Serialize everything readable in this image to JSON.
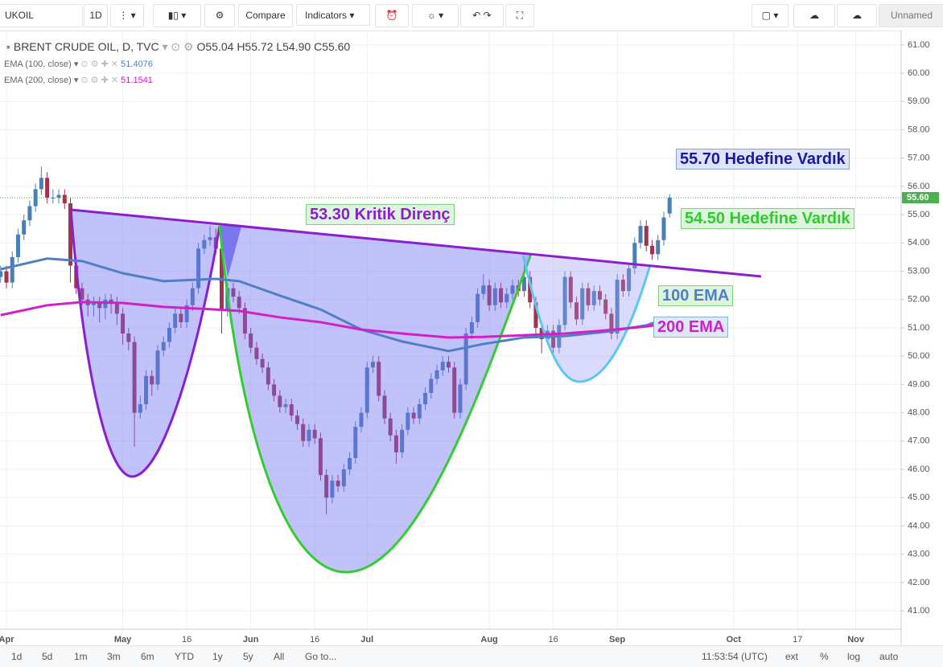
{
  "toolbar": {
    "symbol": "UKOIL",
    "interval": "1D",
    "compare": "Compare",
    "indicators": "Indicators",
    "layout": "Unnamed"
  },
  "legend": {
    "title": "BRENT CRUDE OIL, D, TVC",
    "open": "O55.04",
    "high": "H55.72",
    "low": "L54.90",
    "close": "C55.60"
  },
  "bottom_bar": {
    "ranges": [
      "1d",
      "5d",
      "1m",
      "3m",
      "6m",
      "YTD",
      "1y",
      "5y",
      "All"
    ],
    "goto": "Go to...",
    "clock": "11:53:54 (UTC)",
    "options": [
      "ext",
      "%",
      "log",
      "auto"
    ]
  },
  "chart_data": {
    "type": "candlestick",
    "categories": [
      null,
      "Apr",
      null,
      null,
      null,
      null,
      null,
      null,
      null,
      null,
      null,
      null,
      null,
      null,
      null,
      null,
      null,
      null,
      null,
      null,
      null,
      "May",
      null,
      null,
      null,
      null,
      null,
      null,
      null,
      null,
      null,
      null,
      "16",
      null,
      null,
      null,
      null,
      null,
      null,
      null,
      null,
      null,
      null,
      "Jun",
      null,
      null,
      null,
      null,
      null,
      null,
      null,
      null,
      null,
      null,
      "16",
      null,
      null,
      null,
      null,
      null,
      null,
      null,
      null,
      "Jul",
      null,
      null,
      null,
      null,
      null,
      null,
      null,
      null,
      null,
      null,
      null,
      null,
      null,
      null,
      null,
      null,
      null,
      null,
      null,
      null,
      "Aug",
      null,
      null,
      null,
      null,
      null,
      null,
      null,
      null,
      null,
      null,
      "16",
      null,
      null,
      null,
      null,
      null,
      null,
      null,
      null,
      null,
      null,
      "Sep",
      null,
      null,
      null,
      null,
      null,
      null,
      null,
      null,
      null,
      null,
      null,
      null,
      null,
      null,
      null,
      null,
      null,
      null,
      null,
      "Oct",
      null,
      null,
      null,
      null,
      null,
      null,
      null,
      null,
      null,
      null,
      "17",
      null,
      null,
      null,
      null,
      null,
      null,
      null,
      null,
      null,
      "Nov"
    ],
    "ohlc": [
      [
        52.8,
        53.2,
        52.6,
        53.0
      ],
      [
        53.0,
        53.2,
        52.4,
        52.6
      ],
      [
        52.6,
        53.7,
        52.4,
        53.5
      ],
      [
        53.5,
        54.5,
        53.3,
        54.3
      ],
      [
        54.3,
        55.0,
        54.1,
        54.8
      ],
      [
        54.8,
        55.5,
        54.6,
        55.3
      ],
      [
        55.3,
        56.1,
        55.1,
        55.9
      ],
      [
        55.9,
        56.7,
        55.7,
        56.3
      ],
      [
        56.3,
        56.5,
        55.4,
        55.6
      ],
      [
        55.6,
        55.9,
        55.4,
        55.6
      ],
      [
        55.6,
        55.9,
        55.4,
        55.7
      ],
      [
        55.7,
        55.9,
        55.2,
        55.4
      ],
      [
        55.4,
        55.6,
        52.6,
        53.2
      ],
      [
        53.2,
        53.4,
        52.2,
        52.4
      ],
      [
        52.4,
        52.6,
        51.8,
        52.0
      ],
      [
        52.0,
        52.2,
        51.4,
        51.8
      ],
      [
        51.8,
        52.1,
        51.4,
        51.9
      ],
      [
        51.9,
        52.1,
        51.2,
        51.7
      ],
      [
        51.7,
        52.2,
        51.3,
        52.0
      ],
      [
        52.0,
        52.2,
        51.5,
        51.9
      ],
      [
        51.9,
        52.1,
        51.1,
        51.5
      ],
      [
        51.5,
        51.7,
        50.4,
        50.8
      ],
      [
        50.8,
        51.0,
        50.2,
        50.5
      ],
      [
        50.5,
        50.7,
        46.8,
        48.0
      ],
      [
        48.0,
        48.6,
        47.8,
        48.3
      ],
      [
        48.3,
        49.5,
        48.1,
        49.3
      ],
      [
        49.3,
        49.5,
        48.6,
        49.0
      ],
      [
        49.0,
        50.4,
        48.8,
        50.2
      ],
      [
        50.2,
        50.7,
        50.0,
        50.5
      ],
      [
        50.5,
        51.2,
        50.3,
        51.0
      ],
      [
        51.0,
        51.7,
        50.8,
        51.5
      ],
      [
        51.5,
        51.7,
        51.0,
        51.2
      ],
      [
        51.2,
        52.0,
        51.0,
        51.8
      ],
      [
        51.8,
        52.6,
        51.6,
        52.4
      ],
      [
        52.4,
        54.0,
        52.2,
        53.8
      ],
      [
        53.8,
        54.3,
        53.6,
        54.1
      ],
      [
        54.1,
        54.6,
        53.9,
        54.2
      ],
      [
        54.2,
        54.5,
        53.6,
        53.8
      ],
      [
        53.8,
        54.0,
        50.8,
        51.6
      ],
      [
        51.6,
        52.6,
        51.4,
        52.4
      ],
      [
        52.4,
        52.6,
        51.9,
        52.1
      ],
      [
        52.1,
        52.3,
        51.5,
        51.7
      ],
      [
        51.7,
        51.9,
        50.6,
        50.8
      ],
      [
        50.8,
        51.0,
        50.1,
        50.3
      ],
      [
        50.3,
        50.5,
        49.7,
        49.9
      ],
      [
        49.9,
        50.1,
        49.4,
        49.6
      ],
      [
        49.6,
        49.8,
        48.8,
        49.0
      ],
      [
        49.0,
        49.2,
        48.4,
        48.6
      ],
      [
        48.6,
        48.8,
        48.0,
        48.2
      ],
      [
        48.2,
        48.5,
        48.0,
        48.3
      ],
      [
        48.3,
        48.5,
        47.7,
        47.9
      ],
      [
        47.9,
        48.1,
        47.4,
        47.6
      ],
      [
        47.6,
        47.8,
        46.8,
        47.0
      ],
      [
        47.0,
        47.6,
        46.8,
        47.4
      ],
      [
        47.4,
        47.6,
        46.9,
        47.1
      ],
      [
        47.1,
        47.3,
        45.6,
        45.8
      ],
      [
        45.8,
        46.0,
        44.4,
        45.0
      ],
      [
        45.0,
        45.8,
        44.8,
        45.6
      ],
      [
        45.6,
        45.8,
        45.2,
        45.4
      ],
      [
        45.4,
        46.2,
        45.2,
        46.0
      ],
      [
        46.0,
        46.6,
        45.8,
        46.4
      ],
      [
        46.4,
        47.7,
        46.2,
        47.5
      ],
      [
        47.5,
        48.2,
        47.3,
        48.0
      ],
      [
        48.0,
        49.8,
        47.8,
        49.6
      ],
      [
        49.6,
        50.0,
        49.4,
        49.8
      ],
      [
        49.8,
        50.0,
        48.4,
        48.6
      ],
      [
        48.6,
        48.8,
        47.6,
        47.8
      ],
      [
        47.8,
        48.0,
        47.0,
        47.2
      ],
      [
        47.2,
        47.4,
        46.2,
        46.6
      ],
      [
        46.6,
        47.6,
        46.4,
        47.4
      ],
      [
        47.4,
        48.2,
        47.2,
        48.0
      ],
      [
        48.0,
        48.2,
        47.6,
        47.8
      ],
      [
        47.8,
        48.5,
        47.6,
        48.3
      ],
      [
        48.3,
        48.9,
        48.1,
        48.7
      ],
      [
        48.7,
        49.4,
        48.5,
        49.2
      ],
      [
        49.2,
        49.7,
        49.0,
        49.5
      ],
      [
        49.5,
        50.0,
        49.3,
        49.8
      ],
      [
        49.8,
        50.0,
        49.4,
        49.6
      ],
      [
        49.6,
        49.8,
        47.8,
        48.0
      ],
      [
        48.0,
        49.2,
        47.8,
        49.0
      ],
      [
        49.0,
        51.0,
        48.8,
        50.8
      ],
      [
        50.8,
        51.4,
        50.6,
        51.2
      ],
      [
        51.2,
        52.4,
        51.0,
        52.2
      ],
      [
        52.2,
        52.9,
        52.0,
        52.5
      ],
      [
        52.5,
        52.7,
        51.6,
        51.8
      ],
      [
        51.8,
        52.6,
        51.6,
        52.4
      ],
      [
        52.4,
        52.6,
        51.7,
        51.9
      ],
      [
        51.9,
        52.4,
        51.7,
        52.2
      ],
      [
        52.2,
        52.7,
        52.0,
        52.5
      ],
      [
        52.5,
        52.7,
        52.1,
        52.3
      ],
      [
        52.3,
        53.4,
        52.1,
        52.8
      ],
      [
        52.8,
        53.0,
        51.7,
        51.9
      ],
      [
        51.9,
        52.1,
        50.8,
        51.0
      ],
      [
        51.0,
        51.2,
        50.1,
        50.6
      ],
      [
        50.6,
        51.1,
        50.4,
        50.9
      ],
      [
        50.9,
        51.1,
        50.1,
        50.3
      ],
      [
        50.3,
        51.3,
        50.1,
        51.1
      ],
      [
        51.1,
        53.0,
        50.9,
        52.8
      ],
      [
        52.8,
        53.0,
        51.7,
        51.9
      ],
      [
        51.9,
        52.1,
        51.1,
        51.3
      ],
      [
        51.3,
        52.6,
        51.1,
        52.4
      ],
      [
        52.4,
        52.6,
        51.6,
        51.8
      ],
      [
        51.8,
        52.5,
        51.6,
        52.3
      ],
      [
        52.3,
        52.5,
        51.8,
        52.0
      ],
      [
        52.0,
        52.2,
        51.3,
        51.5
      ],
      [
        51.5,
        51.7,
        50.6,
        50.8
      ],
      [
        50.8,
        52.9,
        50.6,
        52.7
      ],
      [
        52.7,
        52.9,
        52.1,
        52.3
      ],
      [
        52.3,
        53.3,
        52.1,
        53.1
      ],
      [
        53.1,
        54.2,
        52.9,
        54.0
      ],
      [
        54.0,
        54.8,
        53.8,
        54.6
      ],
      [
        54.6,
        54.8,
        53.7,
        53.9
      ],
      [
        53.9,
        54.1,
        53.4,
        53.6
      ],
      [
        53.6,
        54.3,
        53.4,
        54.1
      ],
      [
        54.1,
        55.1,
        53.9,
        54.9
      ],
      [
        55.04,
        55.72,
        54.9,
        55.6
      ],
      null,
      null,
      null,
      null,
      null,
      null,
      null,
      null,
      null,
      null,
      null,
      null,
      null,
      null,
      null,
      null,
      null,
      null,
      null,
      null,
      null,
      null,
      null,
      null,
      null,
      null,
      null,
      null,
      null,
      null,
      null,
      null
    ],
    "up_color": "#4a7fb5",
    "down_color": "#a3324e",
    "indicators": [
      {
        "name": "EMA (100, close)",
        "value_label": "51.4076",
        "color": "#4f7fc4",
        "x": [
          0,
          8,
          14,
          21,
          28,
          37,
          41,
          48,
          55,
          62,
          69,
          77,
          83,
          90,
          97,
          104,
          111,
          115
        ],
        "values": [
          53.07,
          53.45,
          53.36,
          52.93,
          52.65,
          52.73,
          52.65,
          52.14,
          51.65,
          50.94,
          50.52,
          50.18,
          50.43,
          50.66,
          50.71,
          50.86,
          51.09,
          51.37
        ]
      },
      {
        "name": "EMA (200, close)",
        "value_label": "51.1541",
        "color": "#d020c8",
        "x": [
          0,
          8,
          14,
          21,
          28,
          37,
          41,
          48,
          55,
          62,
          69,
          77,
          83,
          90,
          97,
          104,
          111,
          115
        ],
        "values": [
          51.45,
          51.8,
          51.91,
          51.88,
          51.74,
          51.65,
          51.6,
          51.37,
          51.2,
          50.94,
          50.8,
          50.66,
          50.68,
          50.74,
          50.8,
          50.91,
          51.05,
          51.17
        ]
      }
    ],
    "price_label": "55.60",
    "price_color": "#4caf50",
    "ylim": [
      40.35,
      61.45
    ],
    "yticks": [
      {
        "value": 41,
        "label": "41.00"
      },
      {
        "value": 42,
        "label": "42.00"
      },
      {
        "value": 43,
        "label": "43.00"
      },
      {
        "value": 44,
        "label": "44.00"
      },
      {
        "value": 45,
        "label": "45.00"
      },
      {
        "value": 46,
        "label": "46.00"
      },
      {
        "value": 47,
        "label": "47.00"
      },
      {
        "value": 48,
        "label": "48.00"
      },
      {
        "value": 49,
        "label": "49.00"
      },
      {
        "value": 50,
        "label": "50.00"
      },
      {
        "value": 51,
        "label": "51.00"
      },
      {
        "value": 52,
        "label": "52.00"
      },
      {
        "value": 53,
        "label": "53.00"
      },
      {
        "value": 54,
        "label": "54.00"
      },
      {
        "value": 55,
        "label": "55.00"
      },
      {
        "value": 56,
        "label": "56.00"
      },
      {
        "value": 57,
        "label": "57.00"
      },
      {
        "value": 58,
        "label": "58.00"
      },
      {
        "value": 59,
        "label": "59.00"
      },
      {
        "value": 60,
        "label": "60.00"
      },
      {
        "value": 61,
        "label": "61.00"
      }
    ],
    "grid": true,
    "annotations": [
      {
        "text": "55.70 Hedefine Vardık",
        "color": "#1a1aa0"
      },
      {
        "text": "53.30 Kritik Direnç",
        "color": "#8a1fd0"
      },
      {
        "text": "54.50 Hedefine Vardık",
        "color": "#2ecc2e"
      },
      {
        "text": "100 EMA",
        "color": "#4f7fc4"
      },
      {
        "text": "200 EMA",
        "color": "#d020c8"
      }
    ]
  }
}
